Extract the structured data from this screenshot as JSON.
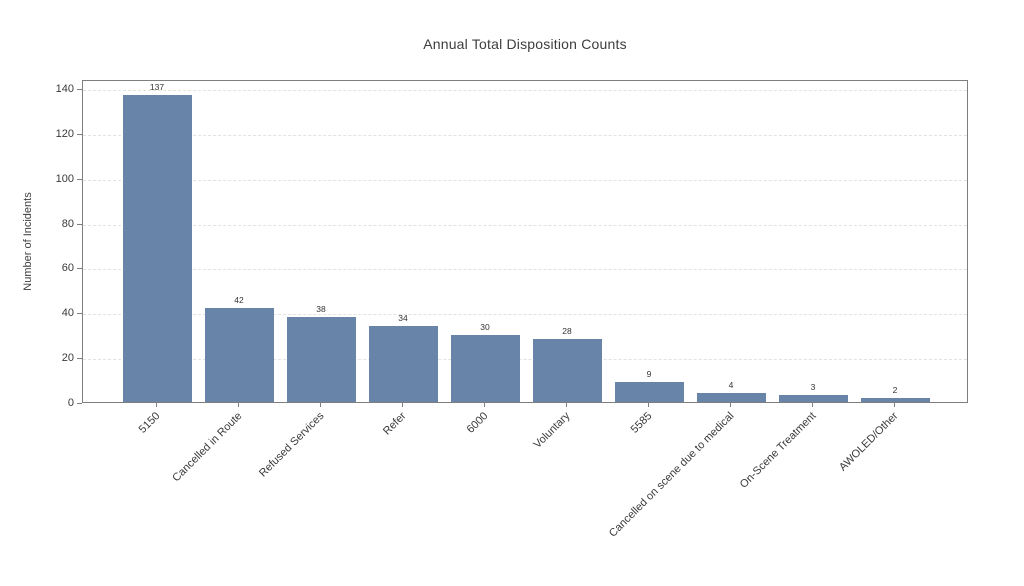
{
  "chart_data": {
    "type": "bar",
    "title": "Annual Total Disposition Counts",
    "ylabel": "Number of Incidents",
    "categories": [
      "5150",
      "Cancelled in Route",
      "Refused Services",
      "Refer",
      "6000",
      "Voluntary",
      "5585",
      "Cancelled on scene due to medical",
      "On-Scene Treatment",
      "AWOLED/Other"
    ],
    "values": [
      137,
      42,
      38,
      34,
      30,
      28,
      9,
      4,
      3,
      2
    ],
    "yticks": [
      0,
      20,
      40,
      60,
      80,
      100,
      120,
      140
    ],
    "ylim": [
      0,
      144
    ],
    "grid": "horizontal-dashed",
    "legend": "none",
    "tick_label_rotation": 45,
    "colors": {
      "bar_fill": "#6884a8",
      "spine": "#7e7e7e",
      "gridline": "#e2e2e2",
      "text": "#3a3a3a",
      "background": "#ffffff"
    }
  }
}
